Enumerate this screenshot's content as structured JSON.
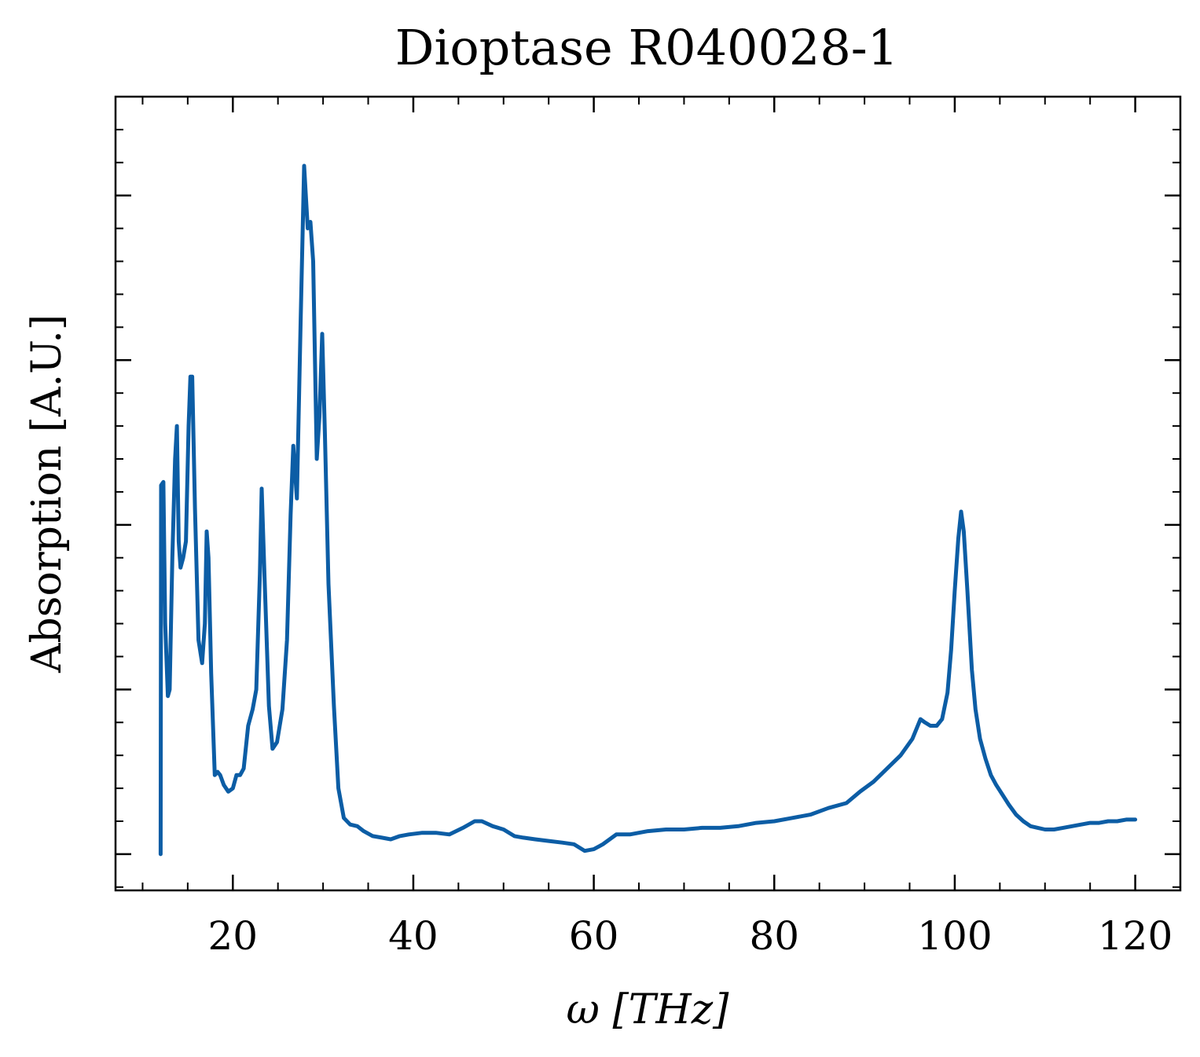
{
  "chart_data": {
    "type": "line",
    "title": "Dioptase R040028-1",
    "xlabel": "ω [THz]",
    "ylabel": "Absorption [A.U.]",
    "xlim": [
      7,
      125
    ],
    "ylim": [
      -0.11,
      2.3
    ],
    "x_ticks": [
      20,
      40,
      60,
      80,
      100,
      120
    ],
    "x_tick_labels": [
      "20",
      "40",
      "60",
      "80",
      "100",
      "120"
    ],
    "y_ticks": [
      0,
      0.5,
      1.0,
      1.5,
      2.0
    ],
    "grid": false,
    "legend": "none",
    "series": [
      {
        "color": "#0C5DA5",
        "points": [
          [
            12.0,
            0.0
          ],
          [
            12.05,
            1.12
          ],
          [
            12.3,
            1.13
          ],
          [
            12.5,
            0.7
          ],
          [
            12.8,
            0.48
          ],
          [
            13.0,
            0.5
          ],
          [
            13.3,
            0.9
          ],
          [
            13.6,
            1.2
          ],
          [
            13.8,
            1.3
          ],
          [
            14.0,
            0.95
          ],
          [
            14.2,
            0.87
          ],
          [
            14.5,
            0.9
          ],
          [
            14.8,
            0.95
          ],
          [
            15.1,
            1.3
          ],
          [
            15.3,
            1.45
          ],
          [
            15.5,
            1.45
          ],
          [
            15.8,
            1.05
          ],
          [
            16.2,
            0.65
          ],
          [
            16.6,
            0.58
          ],
          [
            16.9,
            0.7
          ],
          [
            17.1,
            0.98
          ],
          [
            17.3,
            0.9
          ],
          [
            17.6,
            0.55
          ],
          [
            18.0,
            0.24
          ],
          [
            18.3,
            0.25
          ],
          [
            18.6,
            0.24
          ],
          [
            19.0,
            0.21
          ],
          [
            19.5,
            0.19
          ],
          [
            20.0,
            0.2
          ],
          [
            20.4,
            0.24
          ],
          [
            20.8,
            0.24
          ],
          [
            21.2,
            0.26
          ],
          [
            21.7,
            0.39
          ],
          [
            22.2,
            0.44
          ],
          [
            22.6,
            0.5
          ],
          [
            23.0,
            0.85
          ],
          [
            23.2,
            1.11
          ],
          [
            23.5,
            0.85
          ],
          [
            24.0,
            0.45
          ],
          [
            24.4,
            0.32
          ],
          [
            24.9,
            0.34
          ],
          [
            25.5,
            0.44
          ],
          [
            26.0,
            0.65
          ],
          [
            26.4,
            1.03
          ],
          [
            26.7,
            1.24
          ],
          [
            27.1,
            1.08
          ],
          [
            27.5,
            1.6
          ],
          [
            27.9,
            2.09
          ],
          [
            28.3,
            1.9
          ],
          [
            28.6,
            1.92
          ],
          [
            28.9,
            1.8
          ],
          [
            29.3,
            1.2
          ],
          [
            29.6,
            1.33
          ],
          [
            29.9,
            1.58
          ],
          [
            30.2,
            1.28
          ],
          [
            30.6,
            0.82
          ],
          [
            31.2,
            0.45
          ],
          [
            31.7,
            0.2
          ],
          [
            32.3,
            0.11
          ],
          [
            33.0,
            0.09
          ],
          [
            33.8,
            0.085
          ],
          [
            34.5,
            0.07
          ],
          [
            35.5,
            0.055
          ],
          [
            36.5,
            0.05
          ],
          [
            37.5,
            0.045
          ],
          [
            38.5,
            0.055
          ],
          [
            39.5,
            0.06
          ],
          [
            41.0,
            0.065
          ],
          [
            42.5,
            0.065
          ],
          [
            44.0,
            0.06
          ],
          [
            45.5,
            0.08
          ],
          [
            46.8,
            0.1
          ],
          [
            47.6,
            0.1
          ],
          [
            48.8,
            0.085
          ],
          [
            50.0,
            0.075
          ],
          [
            51.2,
            0.055
          ],
          [
            52.2,
            0.05
          ],
          [
            53.5,
            0.045
          ],
          [
            55.0,
            0.04
          ],
          [
            56.5,
            0.035
          ],
          [
            57.8,
            0.03
          ],
          [
            59.0,
            0.01
          ],
          [
            60.0,
            0.015
          ],
          [
            61.0,
            0.03
          ],
          [
            62.5,
            0.06
          ],
          [
            64.0,
            0.06
          ],
          [
            66.0,
            0.07
          ],
          [
            68.0,
            0.075
          ],
          [
            70.0,
            0.075
          ],
          [
            72.0,
            0.08
          ],
          [
            74.0,
            0.08
          ],
          [
            76.0,
            0.085
          ],
          [
            78.0,
            0.095
          ],
          [
            80.0,
            0.1
          ],
          [
            82.0,
            0.11
          ],
          [
            84.0,
            0.12
          ],
          [
            86.0,
            0.14
          ],
          [
            88.0,
            0.155
          ],
          [
            89.5,
            0.19
          ],
          [
            91.0,
            0.22
          ],
          [
            92.5,
            0.26
          ],
          [
            94.0,
            0.3
          ],
          [
            95.3,
            0.35
          ],
          [
            96.2,
            0.41
          ],
          [
            96.7,
            0.4
          ],
          [
            97.3,
            0.39
          ],
          [
            98.0,
            0.39
          ],
          [
            98.6,
            0.41
          ],
          [
            99.2,
            0.49
          ],
          [
            99.6,
            0.62
          ],
          [
            100.0,
            0.8
          ],
          [
            100.4,
            0.96
          ],
          [
            100.7,
            1.04
          ],
          [
            101.0,
            0.98
          ],
          [
            101.4,
            0.8
          ],
          [
            101.9,
            0.56
          ],
          [
            102.3,
            0.44
          ],
          [
            102.8,
            0.35
          ],
          [
            103.4,
            0.29
          ],
          [
            104.0,
            0.24
          ],
          [
            104.6,
            0.21
          ],
          [
            105.3,
            0.18
          ],
          [
            106.0,
            0.15
          ],
          [
            106.8,
            0.12
          ],
          [
            107.6,
            0.1
          ],
          [
            108.4,
            0.085
          ],
          [
            109.2,
            0.08
          ],
          [
            110.0,
            0.075
          ],
          [
            111.0,
            0.075
          ],
          [
            112.0,
            0.08
          ],
          [
            113.0,
            0.085
          ],
          [
            114.0,
            0.09
          ],
          [
            115.0,
            0.095
          ],
          [
            116.0,
            0.095
          ],
          [
            117.0,
            0.1
          ],
          [
            118.0,
            0.1
          ],
          [
            119.0,
            0.105
          ],
          [
            120.0,
            0.105
          ]
        ]
      }
    ]
  }
}
